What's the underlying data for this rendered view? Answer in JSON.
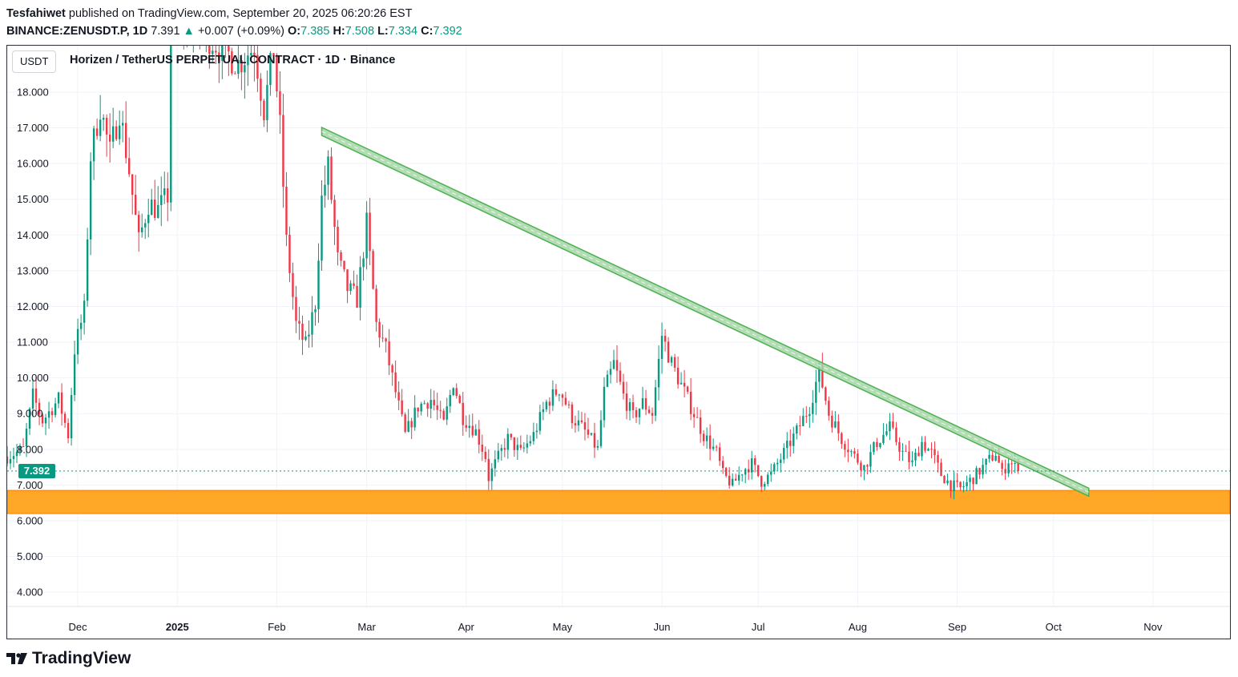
{
  "header": {
    "author": "Tesfahiwet",
    "published": "published on TradingView.com, September 20, 2025 06:20:26 EST",
    "symbol": "BINANCE:ZENUSDT.P, 1D",
    "last": "7.391",
    "change_arrow": "▲",
    "change": "+0.007 (+0.09%)",
    "o_label": "O:",
    "o_value": "7.385",
    "h_label": "H:",
    "h_value": "7.508",
    "l_label": "L:",
    "l_value": "7.334",
    "c_label": "C:",
    "c_value": "7.392"
  },
  "chart": {
    "currency": "USDT",
    "title": "Horizen / TetherUS PERPETUAL CONTRACT · 1D · Binance",
    "last_price_label": "7.392",
    "colors": {
      "up": "#089981",
      "down": "#f23645",
      "trendline": "#4caf50",
      "trendline_fill": "#a5d6a7",
      "support_zone": "#ffa726",
      "grid": "#f0f3fa"
    }
  },
  "chart_data": {
    "type": "candlestick",
    "title": "Horizen / TetherUS PERPETUAL CONTRACT · 1D · Binance",
    "y_ticks": [
      "4.000",
      "5.000",
      "6.000",
      "7.000",
      "8.000",
      "9.000",
      "10.000",
      "11.000",
      "12.000",
      "13.000",
      "14.000",
      "15.000",
      "16.000",
      "17.000",
      "18.000"
    ],
    "ylim": [
      3.6,
      19.3
    ],
    "x_ticks": [
      "Dec",
      "2025",
      "Feb",
      "Mar",
      "Apr",
      "May",
      "Jun",
      "Jul",
      "Aug",
      "Sep",
      "Oct",
      "Nov"
    ],
    "x_tick_dates": [
      "2024-12-01",
      "2025-01-01",
      "2025-02-01",
      "2025-03-01",
      "2025-04-01",
      "2025-05-01",
      "2025-06-01",
      "2025-07-01",
      "2025-08-01",
      "2025-09-01",
      "2025-10-01",
      "2025-11-01"
    ],
    "xlim": [
      "2024-11-09",
      "2025-11-25"
    ],
    "grid": true,
    "last_price": 7.392,
    "close_path": [
      [
        "2024-11-09",
        7.8
      ],
      [
        "2024-11-14",
        8.0
      ],
      [
        "2024-11-17",
        9.5
      ],
      [
        "2024-11-20",
        8.8
      ],
      [
        "2024-11-25",
        9.4
      ],
      [
        "2024-11-28",
        8.4
      ],
      [
        "2024-11-30",
        10.8
      ],
      [
        "2024-12-03",
        11.9
      ],
      [
        "2024-12-05",
        16.2
      ],
      [
        "2024-12-08",
        17.6
      ],
      [
        "2024-12-11",
        16.3
      ],
      [
        "2024-12-14",
        17.5
      ],
      [
        "2024-12-17",
        15.8
      ],
      [
        "2024-12-20",
        13.8
      ],
      [
        "2024-12-23",
        14.9
      ],
      [
        "2024-12-26",
        14.7
      ],
      [
        "2024-12-29",
        15.1
      ],
      [
        "2024-12-30",
        20.5
      ],
      [
        "2025-01-20",
        18.8
      ],
      [
        "2025-01-25",
        19.3
      ],
      [
        "2025-01-28",
        17.5
      ],
      [
        "2025-01-31",
        19.2
      ],
      [
        "2025-02-02",
        17.0
      ],
      [
        "2025-02-04",
        13.8
      ],
      [
        "2025-02-07",
        11.5
      ],
      [
        "2025-02-10",
        10.9
      ],
      [
        "2025-02-13",
        12.1
      ],
      [
        "2025-02-15",
        15.0
      ],
      [
        "2025-02-17",
        15.9
      ],
      [
        "2025-02-20",
        13.3
      ],
      [
        "2025-02-23",
        12.5
      ],
      [
        "2025-02-26",
        12.2
      ],
      [
        "2025-03-01",
        14.3
      ],
      [
        "2025-03-04",
        11.5
      ],
      [
        "2025-03-07",
        10.8
      ],
      [
        "2025-03-10",
        9.6
      ],
      [
        "2025-03-13",
        8.4
      ],
      [
        "2025-03-17",
        9.2
      ],
      [
        "2025-03-21",
        9.4
      ],
      [
        "2025-03-25",
        8.7
      ],
      [
        "2025-03-28",
        9.9
      ],
      [
        "2025-03-31",
        8.9
      ],
      [
        "2025-04-04",
        8.5
      ],
      [
        "2025-04-07",
        7.8
      ],
      [
        "2025-04-08",
        7.2
      ],
      [
        "2025-04-10",
        7.6
      ],
      [
        "2025-04-14",
        8.3
      ],
      [
        "2025-04-18",
        7.9
      ],
      [
        "2025-04-22",
        8.4
      ],
      [
        "2025-04-26",
        9.3
      ],
      [
        "2025-04-30",
        9.7
      ],
      [
        "2025-05-04",
        8.9
      ],
      [
        "2025-05-08",
        8.5
      ],
      [
        "2025-05-12",
        8.0
      ],
      [
        "2025-05-14",
        9.6
      ],
      [
        "2025-05-17",
        10.4
      ],
      [
        "2025-05-20",
        9.5
      ],
      [
        "2025-05-23",
        8.9
      ],
      [
        "2025-05-26",
        9.3
      ],
      [
        "2025-05-29",
        9.0
      ],
      [
        "2025-06-01",
        11.2
      ],
      [
        "2025-06-04",
        10.4
      ],
      [
        "2025-06-07",
        9.8
      ],
      [
        "2025-06-10",
        9.2
      ],
      [
        "2025-06-14",
        8.4
      ],
      [
        "2025-06-18",
        7.9
      ],
      [
        "2025-06-20",
        7.3
      ],
      [
        "2025-06-23",
        7.0
      ],
      [
        "2025-06-26",
        7.4
      ],
      [
        "2025-06-29",
        7.6
      ],
      [
        "2025-07-02",
        7.1
      ],
      [
        "2025-07-05",
        7.3
      ],
      [
        "2025-07-09",
        7.9
      ],
      [
        "2025-07-13",
        8.5
      ],
      [
        "2025-07-17",
        9.2
      ],
      [
        "2025-07-20",
        10.2
      ],
      [
        "2025-07-23",
        9.0
      ],
      [
        "2025-07-27",
        8.3
      ],
      [
        "2025-07-31",
        7.8
      ],
      [
        "2025-08-03",
        7.5
      ],
      [
        "2025-08-07",
        8.2
      ],
      [
        "2025-08-11",
        8.6
      ],
      [
        "2025-08-15",
        7.9
      ],
      [
        "2025-08-18",
        7.6
      ],
      [
        "2025-08-21",
        8.2
      ],
      [
        "2025-08-24",
        7.9
      ],
      [
        "2025-08-27",
        7.3
      ],
      [
        "2025-08-30",
        7.0
      ],
      [
        "2025-09-02",
        6.9
      ],
      [
        "2025-09-06",
        7.2
      ],
      [
        "2025-09-10",
        7.6
      ],
      [
        "2025-09-13",
        7.9
      ],
      [
        "2025-09-15",
        7.3
      ],
      [
        "2025-09-17",
        7.7
      ],
      [
        "2025-09-20",
        7.39
      ]
    ],
    "annotations": [
      {
        "type": "trendline",
        "from": [
          "2025-02-15",
          16.9
        ],
        "to": [
          "2025-10-12",
          6.8
        ]
      },
      {
        "type": "support_zone",
        "x_from": "2024-11-09",
        "x_to": "2025-11-25",
        "y_from": 6.2,
        "y_to": 6.85
      }
    ]
  },
  "footer": {
    "logo_icon": "tradingview-logo-icon",
    "logo_text": "TradingView"
  }
}
